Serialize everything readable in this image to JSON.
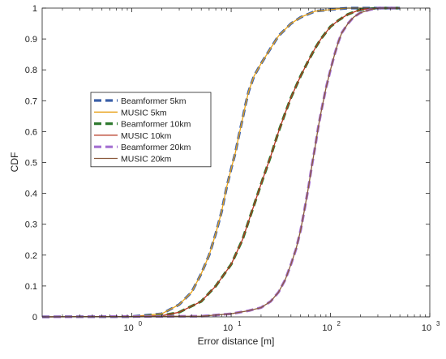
{
  "chart_data": {
    "type": "line",
    "xscale": "log",
    "xlim": [
      0.125,
      1000
    ],
    "ylim": [
      0,
      1
    ],
    "xlabel": "Error distance [m]",
    "ylabel": "CDF",
    "grid": false,
    "legend_position": "center-left",
    "x_ticks": [
      {
        "value": 1,
        "base": "10",
        "exp": "0"
      },
      {
        "value": 10,
        "base": "10",
        "exp": "1"
      },
      {
        "value": 100,
        "base": "10",
        "exp": "2"
      },
      {
        "value": 1000,
        "base": "10",
        "exp": "3"
      }
    ],
    "y_ticks": [
      {
        "value": 0,
        "label": "0"
      },
      {
        "value": 0.1,
        "label": "0.1"
      },
      {
        "value": 0.2,
        "label": "0.2"
      },
      {
        "value": 0.3,
        "label": "0.3"
      },
      {
        "value": 0.4,
        "label": "0.4"
      },
      {
        "value": 0.5,
        "label": "0.5"
      },
      {
        "value": 0.6,
        "label": "0.6"
      },
      {
        "value": 0.7,
        "label": "0.7"
      },
      {
        "value": 0.8,
        "label": "0.8"
      },
      {
        "value": 0.9,
        "label": "0.9"
      },
      {
        "value": 1,
        "label": "1"
      }
    ],
    "series": [
      {
        "name": "Beamformer 5km",
        "color": "#3a5fa8",
        "style": "dashed",
        "x": [
          0.125,
          1,
          2,
          3,
          4,
          5,
          6,
          7,
          8,
          9,
          10,
          11,
          12,
          13,
          14,
          15,
          17,
          20,
          25,
          30,
          40,
          50,
          70,
          100,
          150,
          200,
          300,
          500
        ],
        "y": [
          0,
          0.001,
          0.01,
          0.04,
          0.08,
          0.14,
          0.2,
          0.27,
          0.34,
          0.42,
          0.48,
          0.53,
          0.59,
          0.64,
          0.69,
          0.73,
          0.78,
          0.82,
          0.87,
          0.91,
          0.95,
          0.97,
          0.99,
          0.995,
          1.0,
          1.0,
          1.0,
          1.0
        ]
      },
      {
        "name": "MUSIC 5km",
        "color": "#e8a21a",
        "style": "solid",
        "x": [
          0.125,
          1,
          2,
          3,
          4,
          5,
          6,
          7,
          8,
          9,
          10,
          11,
          12,
          13,
          14,
          15,
          17,
          20,
          25,
          30,
          40,
          50,
          70,
          100,
          150,
          200,
          300,
          500
        ],
        "y": [
          0,
          0.001,
          0.01,
          0.04,
          0.08,
          0.14,
          0.2,
          0.27,
          0.34,
          0.42,
          0.48,
          0.53,
          0.59,
          0.64,
          0.69,
          0.73,
          0.78,
          0.82,
          0.87,
          0.91,
          0.95,
          0.97,
          0.99,
          0.995,
          1.0,
          1.0,
          1.0,
          1.0
        ]
      },
      {
        "name": "Beamformer 10km",
        "color": "#2f7a2f",
        "style": "dashed",
        "x": [
          0.125,
          1,
          2,
          3,
          5,
          7,
          10,
          13,
          15,
          20,
          25,
          30,
          35,
          40,
          50,
          60,
          70,
          80,
          100,
          120,
          150,
          200,
          300,
          500
        ],
        "y": [
          0,
          0.001,
          0.004,
          0.015,
          0.05,
          0.1,
          0.17,
          0.25,
          0.31,
          0.43,
          0.52,
          0.6,
          0.66,
          0.71,
          0.78,
          0.83,
          0.87,
          0.9,
          0.94,
          0.96,
          0.98,
          0.995,
          1.0,
          1.0
        ]
      },
      {
        "name": "MUSIC 10km",
        "color": "#b5341f",
        "style": "solid",
        "x": [
          0.125,
          1,
          2,
          3,
          5,
          7,
          10,
          13,
          15,
          20,
          25,
          30,
          35,
          40,
          50,
          60,
          70,
          80,
          100,
          120,
          150,
          200,
          300,
          500
        ],
        "y": [
          0,
          0.001,
          0.004,
          0.015,
          0.05,
          0.1,
          0.17,
          0.25,
          0.31,
          0.43,
          0.52,
          0.6,
          0.66,
          0.71,
          0.78,
          0.83,
          0.87,
          0.9,
          0.94,
          0.96,
          0.98,
          0.995,
          1.0,
          1.0
        ]
      },
      {
        "name": "Beamformer 20km",
        "color": "#a46fd1",
        "style": "dashed",
        "x": [
          0.125,
          5,
          10,
          15,
          20,
          25,
          30,
          35,
          40,
          45,
          50,
          55,
          60,
          65,
          70,
          75,
          80,
          90,
          100,
          110,
          120,
          130,
          150,
          170,
          200,
          250,
          300,
          400,
          500
        ],
        "y": [
          0,
          0.002,
          0.01,
          0.02,
          0.03,
          0.05,
          0.08,
          0.12,
          0.17,
          0.22,
          0.28,
          0.35,
          0.42,
          0.49,
          0.55,
          0.61,
          0.66,
          0.74,
          0.8,
          0.85,
          0.89,
          0.92,
          0.95,
          0.97,
          0.985,
          0.995,
          1.0,
          1.0,
          1.0
        ]
      },
      {
        "name": "MUSIC 20km",
        "color": "#8a5a3c",
        "style": "solid",
        "x": [
          0.125,
          5,
          10,
          15,
          20,
          25,
          30,
          35,
          40,
          45,
          50,
          55,
          60,
          65,
          70,
          75,
          80,
          90,
          100,
          110,
          120,
          130,
          150,
          170,
          200,
          250,
          300,
          400,
          500
        ],
        "y": [
          0,
          0.002,
          0.01,
          0.02,
          0.03,
          0.05,
          0.08,
          0.12,
          0.17,
          0.22,
          0.28,
          0.35,
          0.42,
          0.49,
          0.55,
          0.61,
          0.66,
          0.74,
          0.8,
          0.85,
          0.89,
          0.92,
          0.95,
          0.97,
          0.985,
          0.995,
          1.0,
          1.0,
          1.0
        ]
      }
    ]
  }
}
